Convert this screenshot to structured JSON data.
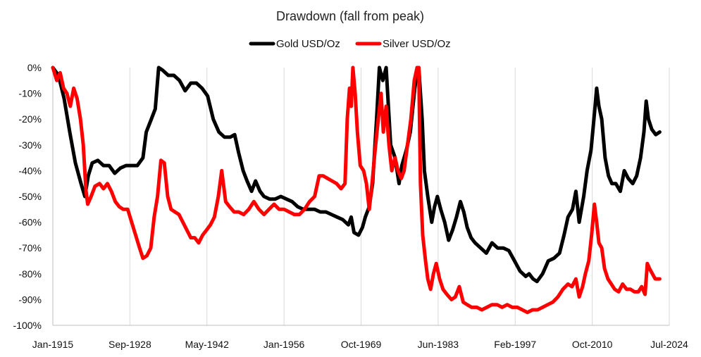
{
  "chart_data": {
    "type": "line",
    "title": "Drawdown (fall from peak)",
    "xlabel": "",
    "ylabel": "",
    "x_tick_labels": [
      "Jan-1915",
      "Sep-1928",
      "May-1942",
      "Jan-1956",
      "Oct-1969",
      "Jun-1983",
      "Feb-1997",
      "Oct-2010",
      "Jul-2024"
    ],
    "x_range": [
      1915.0,
      2024.5
    ],
    "y_tick_labels": [
      "0%",
      "-10%",
      "-20%",
      "-30%",
      "-40%",
      "-50%",
      "-60%",
      "-70%",
      "-80%",
      "-90%",
      "-100%"
    ],
    "y_ticks": [
      0,
      -10,
      -20,
      -30,
      -40,
      -50,
      -60,
      -70,
      -80,
      -90,
      -100
    ],
    "ylim": [
      -100,
      0
    ],
    "grid": "vertical",
    "legend_position": "top",
    "series": [
      {
        "name": "Gold USD/Oz",
        "color": "#000000",
        "points": [
          [
            1915.0,
            0
          ],
          [
            1916.0,
            -3
          ],
          [
            1917.0,
            -12
          ],
          [
            1918.0,
            -25
          ],
          [
            1919.0,
            -37
          ],
          [
            1920.0,
            -45
          ],
          [
            1920.7,
            -50
          ],
          [
            1921.3,
            -42
          ],
          [
            1922.0,
            -37
          ],
          [
            1923.0,
            -36
          ],
          [
            1924.0,
            -38
          ],
          [
            1925.0,
            -38
          ],
          [
            1926.0,
            -41
          ],
          [
            1927.0,
            -39
          ],
          [
            1928.0,
            -38
          ],
          [
            1929.0,
            -38
          ],
          [
            1930.0,
            -38
          ],
          [
            1931.0,
            -35
          ],
          [
            1931.6,
            -25
          ],
          [
            1932.5,
            -20
          ],
          [
            1933.2,
            -16
          ],
          [
            1933.8,
            0
          ],
          [
            1934.5,
            -1
          ],
          [
            1935.5,
            -3
          ],
          [
            1936.5,
            -3
          ],
          [
            1937.5,
            -5
          ],
          [
            1938.5,
            -9
          ],
          [
            1939.5,
            -6
          ],
          [
            1940.5,
            -6
          ],
          [
            1941.5,
            -8
          ],
          [
            1942.5,
            -11
          ],
          [
            1943.5,
            -20
          ],
          [
            1944.5,
            -25
          ],
          [
            1945.5,
            -27
          ],
          [
            1946.5,
            -27
          ],
          [
            1947.3,
            -26
          ],
          [
            1948.0,
            -33
          ],
          [
            1948.8,
            -40
          ],
          [
            1949.5,
            -44
          ],
          [
            1950.3,
            -48
          ],
          [
            1951.0,
            -44
          ],
          [
            1951.8,
            -48
          ],
          [
            1952.5,
            -50
          ],
          [
            1953.5,
            -51
          ],
          [
            1954.5,
            -51
          ],
          [
            1955.5,
            -50
          ],
          [
            1956.5,
            -51
          ],
          [
            1957.5,
            -52
          ],
          [
            1958.5,
            -54
          ],
          [
            1959.5,
            -55
          ],
          [
            1960.5,
            -55
          ],
          [
            1961.5,
            -55
          ],
          [
            1962.5,
            -56
          ],
          [
            1963.5,
            -56
          ],
          [
            1964.5,
            -57
          ],
          [
            1965.5,
            -58
          ],
          [
            1966.5,
            -59
          ],
          [
            1967.5,
            -61
          ],
          [
            1968.0,
            -58
          ],
          [
            1968.5,
            -64
          ],
          [
            1969.3,
            -65
          ],
          [
            1970.0,
            -62
          ],
          [
            1970.5,
            -58
          ],
          [
            1971.2,
            -54
          ],
          [
            1971.8,
            -45
          ],
          [
            1972.5,
            -20
          ],
          [
            1973.0,
            0
          ],
          [
            1973.6,
            -5
          ],
          [
            1974.2,
            0
          ],
          [
            1975.0,
            -30
          ],
          [
            1975.8,
            -35
          ],
          [
            1976.5,
            -45
          ],
          [
            1977.0,
            -38
          ],
          [
            1977.8,
            -32
          ],
          [
            1978.5,
            -25
          ],
          [
            1979.3,
            -8
          ],
          [
            1979.8,
            0
          ],
          [
            1980.0,
            0
          ],
          [
            1980.6,
            -20
          ],
          [
            1981.0,
            -40
          ],
          [
            1981.6,
            -50
          ],
          [
            1982.3,
            -60
          ],
          [
            1982.8,
            -54
          ],
          [
            1983.3,
            -50
          ],
          [
            1983.9,
            -55
          ],
          [
            1984.6,
            -60
          ],
          [
            1985.3,
            -67
          ],
          [
            1986.0,
            -63
          ],
          [
            1986.7,
            -58
          ],
          [
            1987.4,
            -52
          ],
          [
            1988.0,
            -56
          ],
          [
            1988.6,
            -62
          ],
          [
            1989.3,
            -66
          ],
          [
            1990.0,
            -68
          ],
          [
            1991.0,
            -70
          ],
          [
            1992.0,
            -72
          ],
          [
            1993.0,
            -68
          ],
          [
            1994.0,
            -70
          ],
          [
            1995.0,
            -70
          ],
          [
            1996.0,
            -71
          ],
          [
            1997.0,
            -75
          ],
          [
            1998.0,
            -79
          ],
          [
            1999.0,
            -81
          ],
          [
            1999.6,
            -80
          ],
          [
            2000.3,
            -82
          ],
          [
            2001.0,
            -83
          ],
          [
            2002.0,
            -80
          ],
          [
            2003.0,
            -75
          ],
          [
            2004.0,
            -74
          ],
          [
            2005.0,
            -72
          ],
          [
            2005.8,
            -65
          ],
          [
            2006.5,
            -58
          ],
          [
            2007.3,
            -55
          ],
          [
            2007.9,
            -48
          ],
          [
            2008.5,
            -60
          ],
          [
            2009.3,
            -50
          ],
          [
            2009.9,
            -40
          ],
          [
            2010.6,
            -32
          ],
          [
            2011.2,
            -18
          ],
          [
            2011.6,
            -8
          ],
          [
            2012.0,
            -15
          ],
          [
            2012.5,
            -20
          ],
          [
            2013.1,
            -35
          ],
          [
            2013.7,
            -42
          ],
          [
            2014.3,
            -45
          ],
          [
            2015.0,
            -45
          ],
          [
            2015.8,
            -48
          ],
          [
            2016.5,
            -40
          ],
          [
            2017.2,
            -43
          ],
          [
            2018.0,
            -45
          ],
          [
            2018.7,
            -42
          ],
          [
            2019.4,
            -35
          ],
          [
            2020.0,
            -25
          ],
          [
            2020.4,
            -13
          ],
          [
            2020.8,
            -20
          ],
          [
            2021.4,
            -24
          ],
          [
            2022.1,
            -26
          ],
          [
            2022.8,
            -25
          ]
        ]
      },
      {
        "name": "Silver USD/Oz",
        "color": "#ff0000",
        "points": [
          [
            1915.0,
            0
          ],
          [
            1915.7,
            -5
          ],
          [
            1916.3,
            -2
          ],
          [
            1916.9,
            -8
          ],
          [
            1917.5,
            -10
          ],
          [
            1918.1,
            -15
          ],
          [
            1918.7,
            -8
          ],
          [
            1919.3,
            -12
          ],
          [
            1919.9,
            -20
          ],
          [
            1920.4,
            -30
          ],
          [
            1920.9,
            -48
          ],
          [
            1921.2,
            -53
          ],
          [
            1921.8,
            -50
          ],
          [
            1922.5,
            -46
          ],
          [
            1923.3,
            -45
          ],
          [
            1924.0,
            -47
          ],
          [
            1924.7,
            -45
          ],
          [
            1925.4,
            -48
          ],
          [
            1926.1,
            -52
          ],
          [
            1926.8,
            -54
          ],
          [
            1927.5,
            -55
          ],
          [
            1928.3,
            -55
          ],
          [
            1929.0,
            -60
          ],
          [
            1929.7,
            -65
          ],
          [
            1930.4,
            -70
          ],
          [
            1931.0,
            -74
          ],
          [
            1931.7,
            -73
          ],
          [
            1932.4,
            -70
          ],
          [
            1933.0,
            -58
          ],
          [
            1933.6,
            -50
          ],
          [
            1934.2,
            -36
          ],
          [
            1934.8,
            -37
          ],
          [
            1935.4,
            -50
          ],
          [
            1936.0,
            -55
          ],
          [
            1936.7,
            -56
          ],
          [
            1937.4,
            -57
          ],
          [
            1938.1,
            -60
          ],
          [
            1938.8,
            -63
          ],
          [
            1939.5,
            -66
          ],
          [
            1940.2,
            -66
          ],
          [
            1940.9,
            -68
          ],
          [
            1941.6,
            -65
          ],
          [
            1942.3,
            -63
          ],
          [
            1943.0,
            -61
          ],
          [
            1943.7,
            -58
          ],
          [
            1944.4,
            -50
          ],
          [
            1945.0,
            -40
          ],
          [
            1945.7,
            -52
          ],
          [
            1946.4,
            -54
          ],
          [
            1947.2,
            -56
          ],
          [
            1948.0,
            -56
          ],
          [
            1948.9,
            -57
          ],
          [
            1949.8,
            -55
          ],
          [
            1950.7,
            -52
          ],
          [
            1951.6,
            -55
          ],
          [
            1952.5,
            -57
          ],
          [
            1953.4,
            -55
          ],
          [
            1954.3,
            -53
          ],
          [
            1955.2,
            -55
          ],
          [
            1956.1,
            -55
          ],
          [
            1957.0,
            -56
          ],
          [
            1957.9,
            -57
          ],
          [
            1958.8,
            -57
          ],
          [
            1959.7,
            -55
          ],
          [
            1960.6,
            -52
          ],
          [
            1961.5,
            -50
          ],
          [
            1962.3,
            -42
          ],
          [
            1963.0,
            -42
          ],
          [
            1963.8,
            -43
          ],
          [
            1964.6,
            -44
          ],
          [
            1965.4,
            -45
          ],
          [
            1966.2,
            -47
          ],
          [
            1966.9,
            -45
          ],
          [
            1967.3,
            -20
          ],
          [
            1967.7,
            -8
          ],
          [
            1968.0,
            -15
          ],
          [
            1968.3,
            0
          ],
          [
            1968.7,
            -10
          ],
          [
            1969.1,
            -25
          ],
          [
            1969.6,
            -38
          ],
          [
            1970.2,
            -40
          ],
          [
            1970.7,
            -45
          ],
          [
            1971.2,
            -55
          ],
          [
            1971.7,
            -45
          ],
          [
            1972.2,
            -33
          ],
          [
            1972.8,
            -20
          ],
          [
            1973.3,
            -10
          ],
          [
            1973.7,
            -25
          ],
          [
            1974.2,
            -15
          ],
          [
            1974.7,
            -30
          ],
          [
            1975.2,
            -40
          ],
          [
            1975.8,
            -35
          ],
          [
            1976.3,
            -40
          ],
          [
            1976.9,
            -43
          ],
          [
            1977.4,
            -40
          ],
          [
            1978.0,
            -30
          ],
          [
            1978.6,
            -20
          ],
          [
            1979.2,
            -5
          ],
          [
            1979.7,
            0
          ],
          [
            1980.0,
            0
          ],
          [
            1980.3,
            -45
          ],
          [
            1980.7,
            -65
          ],
          [
            1981.2,
            -75
          ],
          [
            1981.6,
            -82
          ],
          [
            1982.1,
            -86
          ],
          [
            1982.6,
            -80
          ],
          [
            1983.1,
            -76
          ],
          [
            1983.7,
            -82
          ],
          [
            1984.3,
            -86
          ],
          [
            1985.0,
            -88
          ],
          [
            1985.8,
            -90
          ],
          [
            1986.5,
            -89
          ],
          [
            1987.2,
            -85
          ],
          [
            1987.9,
            -91
          ],
          [
            1988.6,
            -92
          ],
          [
            1989.4,
            -93
          ],
          [
            1990.3,
            -93
          ],
          [
            1991.2,
            -94
          ],
          [
            1992.1,
            -93
          ],
          [
            1993.0,
            -92
          ],
          [
            1993.9,
            -92
          ],
          [
            1994.8,
            -93
          ],
          [
            1995.7,
            -92
          ],
          [
            1996.6,
            -93
          ],
          [
            1997.5,
            -93
          ],
          [
            1998.4,
            -94
          ],
          [
            1999.3,
            -95
          ],
          [
            2000.2,
            -94
          ],
          [
            2001.1,
            -94
          ],
          [
            2002.0,
            -93
          ],
          [
            2002.9,
            -92
          ],
          [
            2003.8,
            -91
          ],
          [
            2004.7,
            -89
          ],
          [
            2005.6,
            -86
          ],
          [
            2006.5,
            -84
          ],
          [
            2007.2,
            -85
          ],
          [
            2007.9,
            -82
          ],
          [
            2008.5,
            -89
          ],
          [
            2009.1,
            -85
          ],
          [
            2009.6,
            -80
          ],
          [
            2010.2,
            -75
          ],
          [
            2010.7,
            -65
          ],
          [
            2011.2,
            -53
          ],
          [
            2011.6,
            -60
          ],
          [
            2012.0,
            -68
          ],
          [
            2012.5,
            -70
          ],
          [
            2013.0,
            -78
          ],
          [
            2013.6,
            -82
          ],
          [
            2014.2,
            -84
          ],
          [
            2014.8,
            -86
          ],
          [
            2015.5,
            -87
          ],
          [
            2016.2,
            -84
          ],
          [
            2016.9,
            -86
          ],
          [
            2017.6,
            -86
          ],
          [
            2018.3,
            -87
          ],
          [
            2019.0,
            -87
          ],
          [
            2019.6,
            -85
          ],
          [
            2020.2,
            -88
          ],
          [
            2020.6,
            -76
          ],
          [
            2021.0,
            -78
          ],
          [
            2021.5,
            -80
          ],
          [
            2022.0,
            -82
          ],
          [
            2022.8,
            -82
          ]
        ]
      }
    ]
  }
}
